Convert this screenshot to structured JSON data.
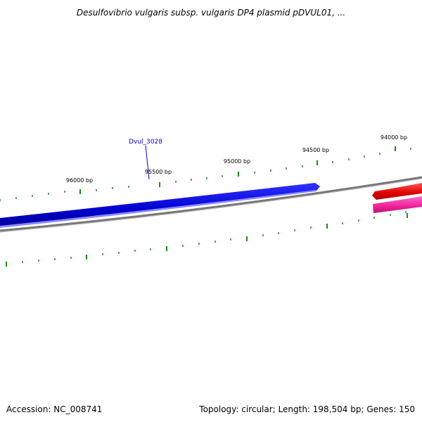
{
  "title": "Desulfovibrio vulgaris subsp. vulgaris DP4 plasmid pDVUL01, ...",
  "ticks": [
    {
      "label": "96000 bp"
    },
    {
      "label": "95500 bp"
    },
    {
      "label": "95000 bp"
    },
    {
      "label": "94500 bp"
    },
    {
      "label": "94000 bp"
    }
  ],
  "gene_label": "Dvul_3028",
  "footer": {
    "accession": "Accession: NC_008741",
    "summary": "Topology: circular; Length: 198,504 bp; Genes: 150"
  },
  "colors": {
    "forward_gene": "#0000dd",
    "reverse_gene_red": "#ee0000",
    "reverse_gene_pink": "#ee2299",
    "backbone": "#808080",
    "tick": "#1a8a1a",
    "gene_label": "#0000cc"
  }
}
